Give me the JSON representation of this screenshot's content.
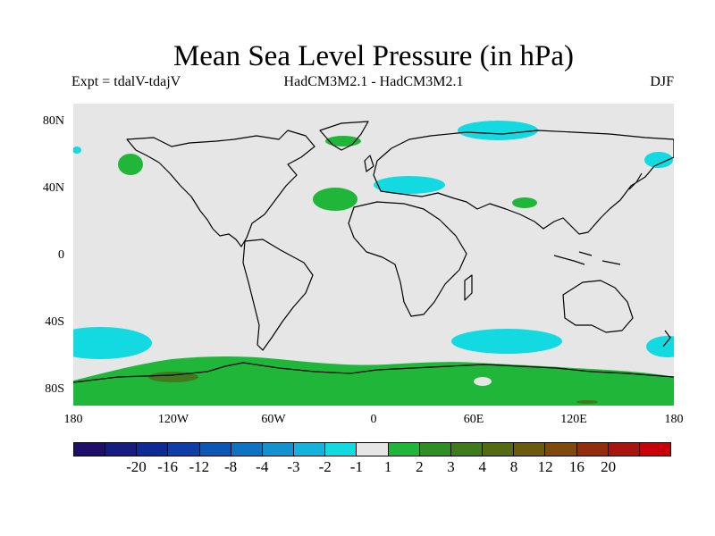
{
  "title": "Mean Sea Level Pressure (in hPa)",
  "subtitle_left": "Expt = tdalV-tdajV",
  "subtitle_center": "HadCM3M2.1 - HadCM3M2.1",
  "subtitle_right": "DJF",
  "lat_labels": [
    "80N",
    "40N",
    "0",
    "40S",
    "80S"
  ],
  "lon_labels": [
    "180",
    "120W",
    "60W",
    "0",
    "60E",
    "120E",
    "180"
  ],
  "colorbar": {
    "colors": [
      "#1f0f6b",
      "#161c80",
      "#0f2a95",
      "#0f3ea6",
      "#0d57b4",
      "#0f73c3",
      "#1491cf",
      "#13b3dc",
      "#13d9e1",
      "#e6e6e6",
      "#1fb63a",
      "#2f8f25",
      "#3f7b1c",
      "#566915",
      "#6b5a10",
      "#7f4a0e",
      "#922e0e",
      "#a8140f",
      "#c8000a"
    ],
    "labels": [
      "-20",
      "-16",
      "-12",
      "-8",
      "-4",
      "-3",
      "-2",
      "-1",
      "1",
      "2",
      "3",
      "4",
      "8",
      "12",
      "16",
      "20"
    ]
  },
  "colors": {
    "ocean": "#e6e6e6",
    "coast": "#000000",
    "negative": "#13d9e1",
    "positive": "#1fb63a",
    "positive_strong": "#3f7b1c"
  }
}
